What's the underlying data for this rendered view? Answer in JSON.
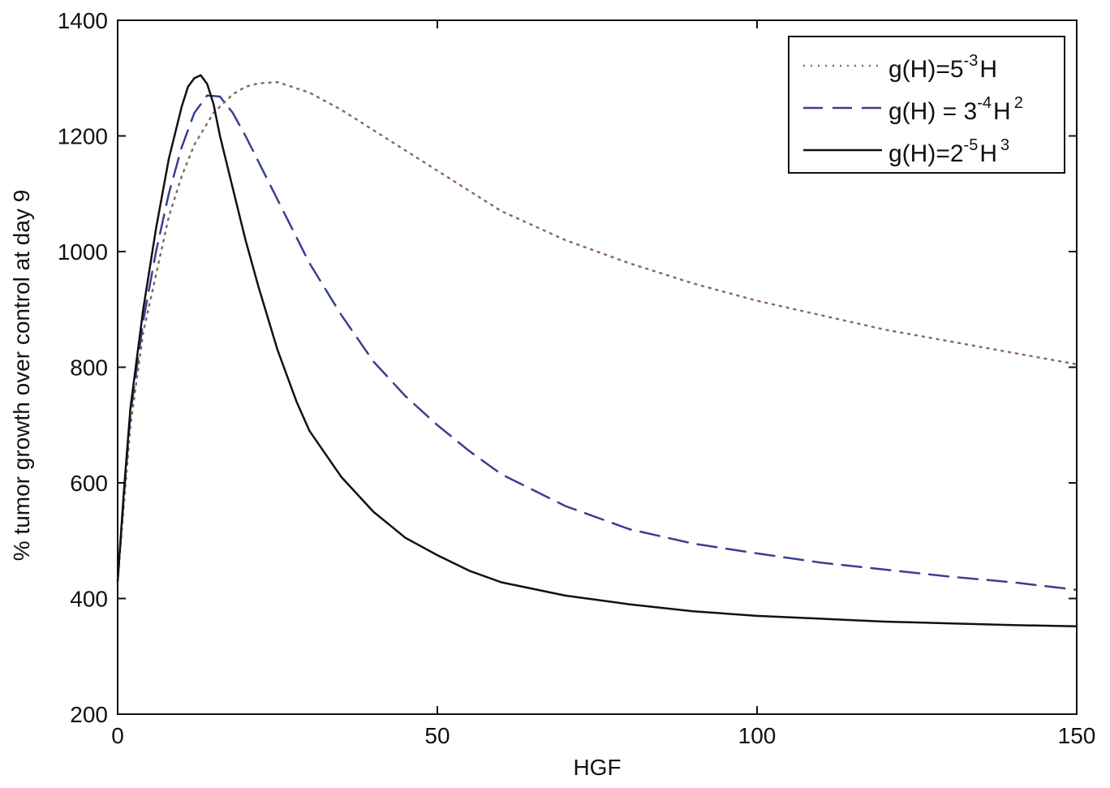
{
  "chart_data": {
    "type": "line",
    "xlabel": "HGF",
    "ylabel": "% tumor growth over control at day 9",
    "xlim": [
      0,
      150
    ],
    "ylim": [
      200,
      1400
    ],
    "xticks": [
      0,
      50,
      100,
      150
    ],
    "yticks": [
      200,
      400,
      600,
      800,
      1000,
      1200,
      1400
    ],
    "grid": false,
    "legend_position": "top-right",
    "series": [
      {
        "name": "g(H)=5^-3 H",
        "legend": {
          "base": "g(H)=5",
          "sup": "-3",
          "tail": "H",
          "sup2": ""
        },
        "style": "dotted",
        "color": "#8a6a5a",
        "x": [
          0,
          2,
          4,
          6,
          8,
          10,
          12,
          15,
          18,
          20,
          22,
          25,
          30,
          35,
          40,
          50,
          60,
          70,
          80,
          90,
          100,
          110,
          120,
          130,
          140,
          150
        ],
        "y": [
          430,
          700,
          860,
          960,
          1060,
          1130,
          1185,
          1240,
          1272,
          1285,
          1291,
          1293,
          1275,
          1245,
          1210,
          1140,
          1070,
          1020,
          980,
          945,
          915,
          890,
          865,
          845,
          825,
          805
        ]
      },
      {
        "name": "g(H) = 3^-4 H^2",
        "legend": {
          "base": "g(H) = 3",
          "sup": "-4",
          "tail": "H",
          "sup2": "2"
        },
        "style": "dashed",
        "color": "#3a3f8f",
        "x": [
          0,
          1,
          2,
          4,
          6,
          8,
          10,
          12,
          14,
          16,
          18,
          20,
          25,
          30,
          35,
          40,
          45,
          50,
          55,
          60,
          70,
          80,
          90,
          100,
          110,
          120,
          130,
          140,
          150
        ],
        "y": [
          430,
          580,
          720,
          880,
          1000,
          1100,
          1180,
          1240,
          1270,
          1268,
          1240,
          1200,
          1090,
          980,
          890,
          810,
          750,
          700,
          655,
          615,
          560,
          520,
          495,
          478,
          462,
          450,
          438,
          428,
          415
        ]
      },
      {
        "name": "g(H)=2^-5 H^3",
        "legend": {
          "base": "g(H)=2",
          "sup": "-5",
          "tail": "H",
          "sup2": "3"
        },
        "style": "solid",
        "color": "#111111",
        "x": [
          0,
          1,
          2,
          4,
          6,
          8,
          10,
          11,
          12,
          13,
          14,
          15,
          16,
          18,
          20,
          22,
          25,
          28,
          30,
          35,
          40,
          45,
          50,
          55,
          60,
          70,
          80,
          90,
          100,
          110,
          120,
          130,
          140,
          150
        ],
        "y": [
          430,
          590,
          730,
          900,
          1040,
          1160,
          1250,
          1285,
          1300,
          1305,
          1290,
          1255,
          1200,
          1110,
          1020,
          940,
          830,
          740,
          690,
          610,
          550,
          505,
          475,
          448,
          428,
          405,
          390,
          378,
          370,
          365,
          360,
          357,
          354,
          352
        ]
      }
    ]
  }
}
